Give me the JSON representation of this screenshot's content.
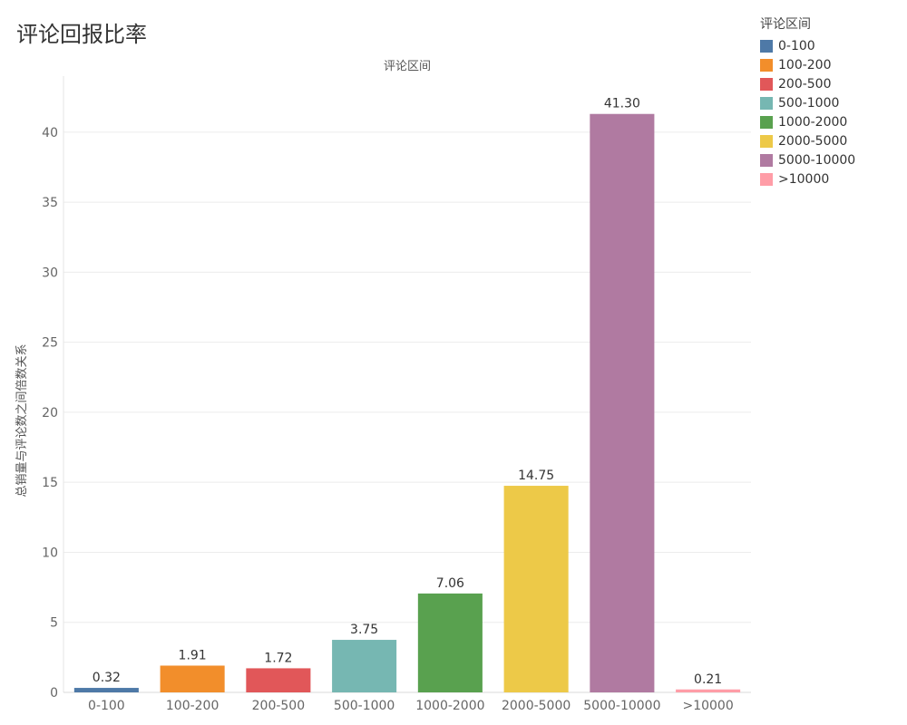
{
  "title": "评论回报比率",
  "chart_data": {
    "type": "bar",
    "x_header": "评论区间",
    "ylabel": "总销量与评论数之间倍数关系",
    "categories": [
      "0-100",
      "100-200",
      "200-500",
      "500-1000",
      "1000-2000",
      "2000-5000",
      "5000-10000",
      ">10000"
    ],
    "values": [
      0.32,
      1.91,
      1.72,
      3.75,
      7.06,
      14.75,
      41.3,
      0.21
    ],
    "value_labels": [
      "0.32",
      "1.91",
      "1.72",
      "3.75",
      "7.06",
      "14.75",
      "41.30",
      "0.21"
    ],
    "colors": [
      "#4e79a7",
      "#f28e2b",
      "#e15759",
      "#76b7b2",
      "#59a14f",
      "#edc948",
      "#b07aa1",
      "#ff9da7"
    ],
    "ylim": [
      0,
      44
    ],
    "yticks": [
      0,
      5,
      10,
      15,
      20,
      25,
      30,
      35,
      40
    ],
    "grid": true,
    "legend_position": "top-right"
  },
  "legend": {
    "title": "评论区间",
    "items": [
      {
        "label": "0-100",
        "color": "#4e79a7"
      },
      {
        "label": "100-200",
        "color": "#f28e2b"
      },
      {
        "label": "200-500",
        "color": "#e15759"
      },
      {
        "label": "500-1000",
        "color": "#76b7b2"
      },
      {
        "label": "1000-2000",
        "color": "#59a14f"
      },
      {
        "label": "2000-5000",
        "color": "#edc948"
      },
      {
        "label": "5000-10000",
        "color": "#b07aa1"
      },
      {
        "label": ">10000",
        "color": "#ff9da7"
      }
    ]
  }
}
